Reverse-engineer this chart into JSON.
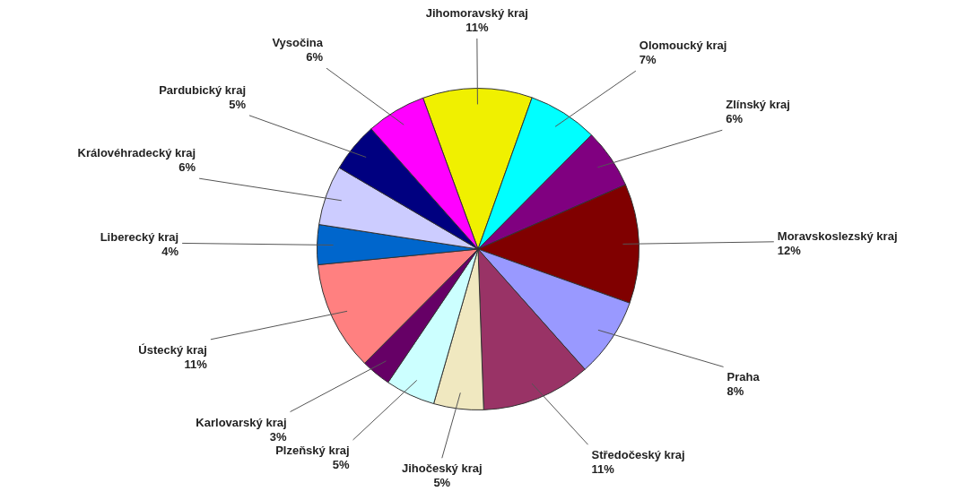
{
  "chart_data": {
    "type": "pie",
    "categories": [
      "Jihomoravský kraj",
      "Olomoucký kraj",
      "Zlínský kraj",
      "Moravskoslezský kraj",
      "Praha",
      "Středočeský kraj",
      "Jihočeský kraj",
      "Plzeňský kraj",
      "Karlovarský kraj",
      "Ústecký kraj",
      "Liberecký kraj",
      "Královéhradecký kraj",
      "Pardubický kraj",
      "Vysočina"
    ],
    "values": [
      11,
      7,
      6,
      12,
      8,
      11,
      5,
      5,
      3,
      11,
      4,
      6,
      5,
      6
    ],
    "value_labels": [
      "11%",
      "7%",
      "6%",
      "12%",
      "8%",
      "11%",
      "5%",
      "5%",
      "3%",
      "11%",
      "4%",
      "6%",
      "5%",
      "6%"
    ],
    "colors": [
      "#f0f000",
      "#00ffff",
      "#800080",
      "#800000",
      "#9999ff",
      "#993366",
      "#f0e8c0",
      "#ccffff",
      "#660066",
      "#ff8080",
      "#0066cc",
      "#ccccff",
      "#000080",
      "#ff00ff"
    ],
    "legend": false
  }
}
